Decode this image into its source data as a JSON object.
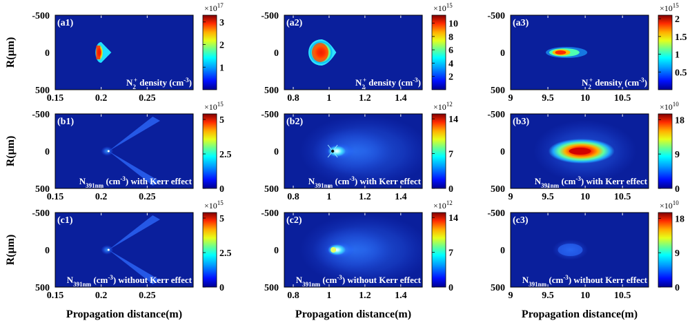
{
  "figure": {
    "ylabel": "R(μm)",
    "xlabel": "Propagation distance(m)"
  },
  "chart_data": [
    {
      "id": "a1",
      "type": "heatmap",
      "panel_label": "(a1)",
      "annotation": {
        "base": "N",
        "sub": "2",
        "sup": "+",
        "rest": " density (cm",
        "unit_sup": "-3",
        "close": ")"
      },
      "x_ticks": [
        "0.15",
        "0.2",
        "0.25"
      ],
      "xlim": [
        0.15,
        0.3
      ],
      "y_ticks": [
        "-500",
        "0",
        "500"
      ],
      "ylim": [
        -500,
        500
      ],
      "colorbar": {
        "multiplier": "×10",
        "exponent": "17",
        "ticks": [
          "1",
          "2",
          "3"
        ],
        "max": 3.3
      }
    },
    {
      "id": "a2",
      "type": "heatmap",
      "panel_label": "(a2)",
      "annotation": {
        "base": "N",
        "sub": "2",
        "sup": "+",
        "rest": " density (cm",
        "unit_sup": "-3",
        "close": ")"
      },
      "x_ticks": [
        "0.8",
        "1",
        "1.2",
        "1.4"
      ],
      "xlim": [
        0.75,
        1.52
      ],
      "y_ticks": [
        "-500",
        "0",
        "500"
      ],
      "ylim": [
        -500,
        500
      ],
      "colorbar": {
        "multiplier": "×10",
        "exponent": "15",
        "ticks": [
          "2",
          "4",
          "6",
          "8",
          "10"
        ],
        "max": 11.2
      }
    },
    {
      "id": "a3",
      "type": "heatmap",
      "panel_label": "(a3)",
      "annotation": {
        "base": "N",
        "sub": "2",
        "sup": "+",
        "rest": " density (cm",
        "unit_sup": "-3",
        "close": ")"
      },
      "x_ticks": [
        "9",
        "9.5",
        "10",
        "10.5"
      ],
      "xlim": [
        9,
        10.85
      ],
      "y_ticks": [
        "-500",
        "0",
        "500"
      ],
      "ylim": [
        -500,
        500
      ],
      "colorbar": {
        "multiplier": "×10",
        "exponent": "15",
        "ticks": [
          "0.5",
          "1",
          "1.5",
          "2"
        ],
        "max": 2.1
      }
    },
    {
      "id": "b1",
      "type": "heatmap",
      "panel_label": "(b1)",
      "annotation": {
        "base": "N",
        "sub": "391nm",
        "sup": "",
        "rest": " (cm",
        "unit_sup": "-3",
        "close": ") with Kerr effect"
      },
      "x_ticks": [
        "0.15",
        "0.2",
        "0.25"
      ],
      "xlim": [
        0.15,
        0.3
      ],
      "y_ticks": [
        "-500",
        "0",
        "500"
      ],
      "ylim": [
        -500,
        500
      ],
      "colorbar": {
        "multiplier": "×10",
        "exponent": "15",
        "ticks": [
          "0",
          "2.5",
          "5"
        ],
        "max": 5.4
      }
    },
    {
      "id": "b2",
      "type": "heatmap",
      "panel_label": "(b2)",
      "annotation": {
        "base": "N",
        "sub": "391nm",
        "sup": "",
        "rest": " (cm",
        "unit_sup": "-3",
        "close": ") with Kerr effect"
      },
      "x_ticks": [
        "0.8",
        "1",
        "1.2",
        "1.4"
      ],
      "xlim": [
        0.75,
        1.52
      ],
      "y_ticks": [
        "-500",
        "0",
        "500"
      ],
      "ylim": [
        -500,
        500
      ],
      "colorbar": {
        "multiplier": "×10",
        "exponent": "12",
        "ticks": [
          "0",
          "7",
          "14"
        ],
        "max": 15
      }
    },
    {
      "id": "b3",
      "type": "heatmap",
      "panel_label": "(b3)",
      "annotation": {
        "base": "N",
        "sub": "391nm",
        "sup": "",
        "rest": " (cm",
        "unit_sup": "-3",
        "close": ") with Kerr effect"
      },
      "x_ticks": [
        "9",
        "9.5",
        "10",
        "10.5"
      ],
      "xlim": [
        9,
        10.85
      ],
      "y_ticks": [
        "-500",
        "0",
        "500"
      ],
      "ylim": [
        -500,
        500
      ],
      "colorbar": {
        "multiplier": "×10",
        "exponent": "10",
        "ticks": [
          "0",
          "9",
          "18"
        ],
        "max": 19.5
      }
    },
    {
      "id": "c1",
      "type": "heatmap",
      "panel_label": "(c1)",
      "annotation": {
        "base": "N",
        "sub": "391nm",
        "sup": "",
        "rest": " (cm",
        "unit_sup": "-3",
        "close": ") without Kerr effect"
      },
      "x_ticks": [
        "0.15",
        "0.2",
        "0.25"
      ],
      "xlim": [
        0.15,
        0.3
      ],
      "y_ticks": [
        "-500",
        "0",
        "500"
      ],
      "ylim": [
        -500,
        500
      ],
      "colorbar": {
        "multiplier": "×10",
        "exponent": "15",
        "ticks": [
          "0",
          "2.5",
          "5"
        ],
        "max": 5.4
      }
    },
    {
      "id": "c2",
      "type": "heatmap",
      "panel_label": "(c2)",
      "annotation": {
        "base": "N",
        "sub": "391nm",
        "sup": "",
        "rest": " (cm",
        "unit_sup": "-3",
        "close": ") without Kerr effect"
      },
      "x_ticks": [
        "0.8",
        "1",
        "1.2",
        "1.4"
      ],
      "xlim": [
        0.75,
        1.52
      ],
      "y_ticks": [
        "-500",
        "0",
        "500"
      ],
      "ylim": [
        -500,
        500
      ],
      "colorbar": {
        "multiplier": "×10",
        "exponent": "12",
        "ticks": [
          "0",
          "7",
          "14"
        ],
        "max": 15
      }
    },
    {
      "id": "c3",
      "type": "heatmap",
      "panel_label": "(c3)",
      "annotation": {
        "base": "N",
        "sub": "391nm",
        "sup": "",
        "rest": " (cm",
        "unit_sup": "-3",
        "close": ") without Kerr effect"
      },
      "x_ticks": [
        "9",
        "9.5",
        "10",
        "10.5"
      ],
      "xlim": [
        9,
        10.85
      ],
      "y_ticks": [
        "-500",
        "0",
        "500"
      ],
      "ylim": [
        -500,
        500
      ],
      "colorbar": {
        "multiplier": "×10",
        "exponent": "10",
        "ticks": [
          "0",
          "9",
          "18"
        ],
        "max": 19.5
      }
    }
  ]
}
